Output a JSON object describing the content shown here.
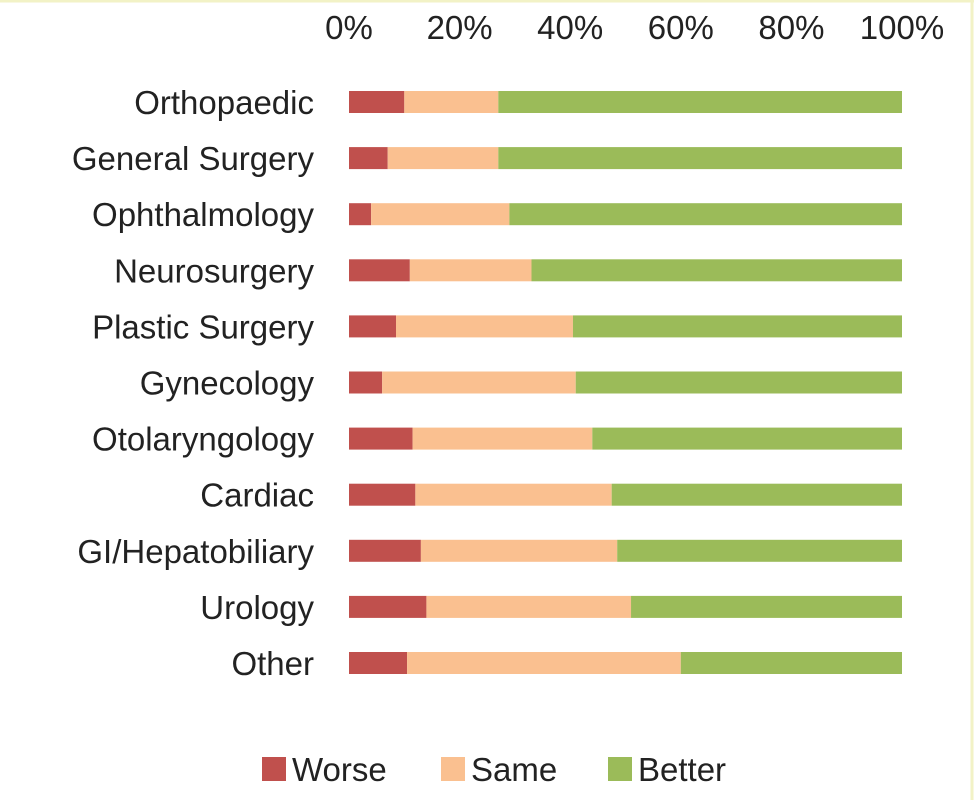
{
  "chart_data": {
    "type": "bar",
    "orientation": "horizontal",
    "stacked": "percent",
    "categories": [
      "Orthopaedic",
      "General Surgery",
      "Ophthalmology",
      "Neurosurgery",
      "Plastic Surgery",
      "Gynecology",
      "Otolaryngology",
      "Cardiac",
      "GI/Hepatobiliary",
      "Urology",
      "Other"
    ],
    "series": [
      {
        "name": "Worse",
        "color": "#c0504d",
        "values": [
          10,
          7,
          4,
          11,
          8.5,
          6,
          11.5,
          12,
          13,
          14,
          10.5
        ]
      },
      {
        "name": "Same",
        "color": "#fac090",
        "values": [
          17,
          20,
          25,
          22,
          32,
          35,
          32.5,
          35.5,
          35.5,
          37,
          49.5
        ]
      },
      {
        "name": "Better",
        "color": "#9bbb59",
        "values": [
          73,
          73,
          71,
          67,
          59.5,
          59,
          56,
          52.5,
          51.5,
          49,
          40
        ]
      }
    ],
    "xaxis": {
      "position": "top",
      "ticks": [
        "0%",
        "20%",
        "40%",
        "60%",
        "80%",
        "100%"
      ],
      "range": [
        0,
        100
      ]
    },
    "grid": false,
    "legend": {
      "position": "bottom",
      "entries": [
        "Worse",
        "Same",
        "Better"
      ]
    }
  }
}
